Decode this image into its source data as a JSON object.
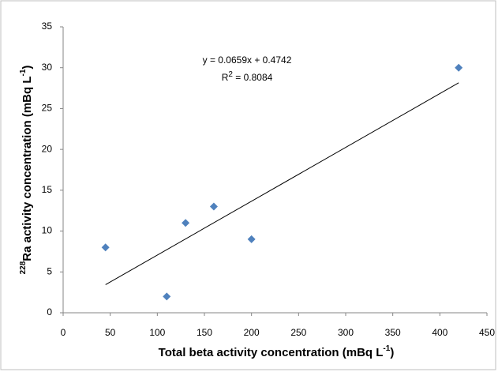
{
  "chart_data": {
    "type": "scatter",
    "x_label": {
      "text": "Total beta activity concentration (mBq L",
      "sup": "-1",
      "end": ")"
    },
    "y_label": {
      "pre": "228",
      "text": "Ra activity concentration (mBq L",
      "sup": "-1",
      "end": ")"
    },
    "x": [
      45,
      110,
      130,
      160,
      200,
      420
    ],
    "series": [
      {
        "color": "#4f81bd",
        "values": [
          8,
          2,
          11,
          13,
          9,
          30
        ]
      }
    ],
    "trendline": {
      "color": "#000000",
      "x": [
        45,
        420
      ],
      "values": [
        3.44,
        28.15
      ]
    },
    "equation": "y = 0.0659x + 0.4742",
    "r_squared": {
      "text": "R",
      "sup": "2",
      "end": " = 0.8084"
    },
    "xlim": [
      0,
      450
    ],
    "xticks": [
      0,
      50,
      100,
      150,
      200,
      250,
      300,
      350,
      400,
      450
    ],
    "ylim": [
      0,
      35
    ],
    "yticks": [
      0,
      5,
      10,
      15,
      20,
      25,
      30,
      35
    ]
  }
}
